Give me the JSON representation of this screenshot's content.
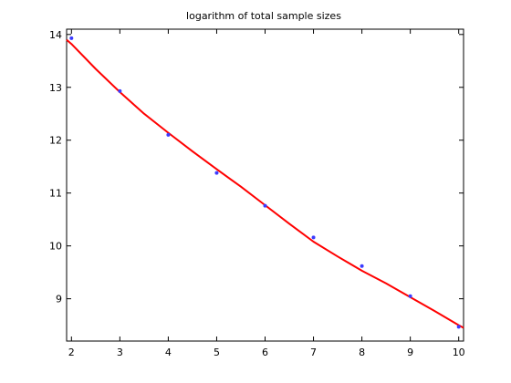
{
  "chart_data": {
    "type": "scatter",
    "title": "logarithm of total sample sizes",
    "xlabel": "",
    "ylabel": "",
    "xlim": [
      1.9,
      10.1
    ],
    "ylim": [
      8.2,
      14.1
    ],
    "xticks": [
      2,
      3,
      4,
      5,
      6,
      7,
      8,
      9,
      10
    ],
    "yticks": [
      9,
      10,
      11,
      12,
      13,
      14
    ],
    "grid": false,
    "legend": "none",
    "series": [
      {
        "kind": "scatter",
        "color": "#3b3bff",
        "x": [
          2,
          3,
          4,
          5,
          6,
          7,
          8,
          9,
          10
        ],
        "y": [
          13.93,
          12.93,
          12.1,
          11.38,
          10.76,
          10.16,
          9.62,
          9.05,
          8.47
        ]
      },
      {
        "kind": "line",
        "color": "#ff0000",
        "x": [
          1.9,
          2,
          2.5,
          3,
          3.5,
          4,
          4.5,
          5,
          5.5,
          6,
          6.5,
          7,
          7.5,
          8,
          8.5,
          9,
          9.5,
          10,
          10.1
        ],
        "y": [
          13.9,
          13.82,
          13.35,
          12.91,
          12.5,
          12.14,
          11.79,
          11.45,
          11.12,
          10.77,
          10.42,
          10.08,
          9.8,
          9.53,
          9.29,
          9.03,
          8.77,
          8.5,
          8.45
        ]
      }
    ]
  }
}
